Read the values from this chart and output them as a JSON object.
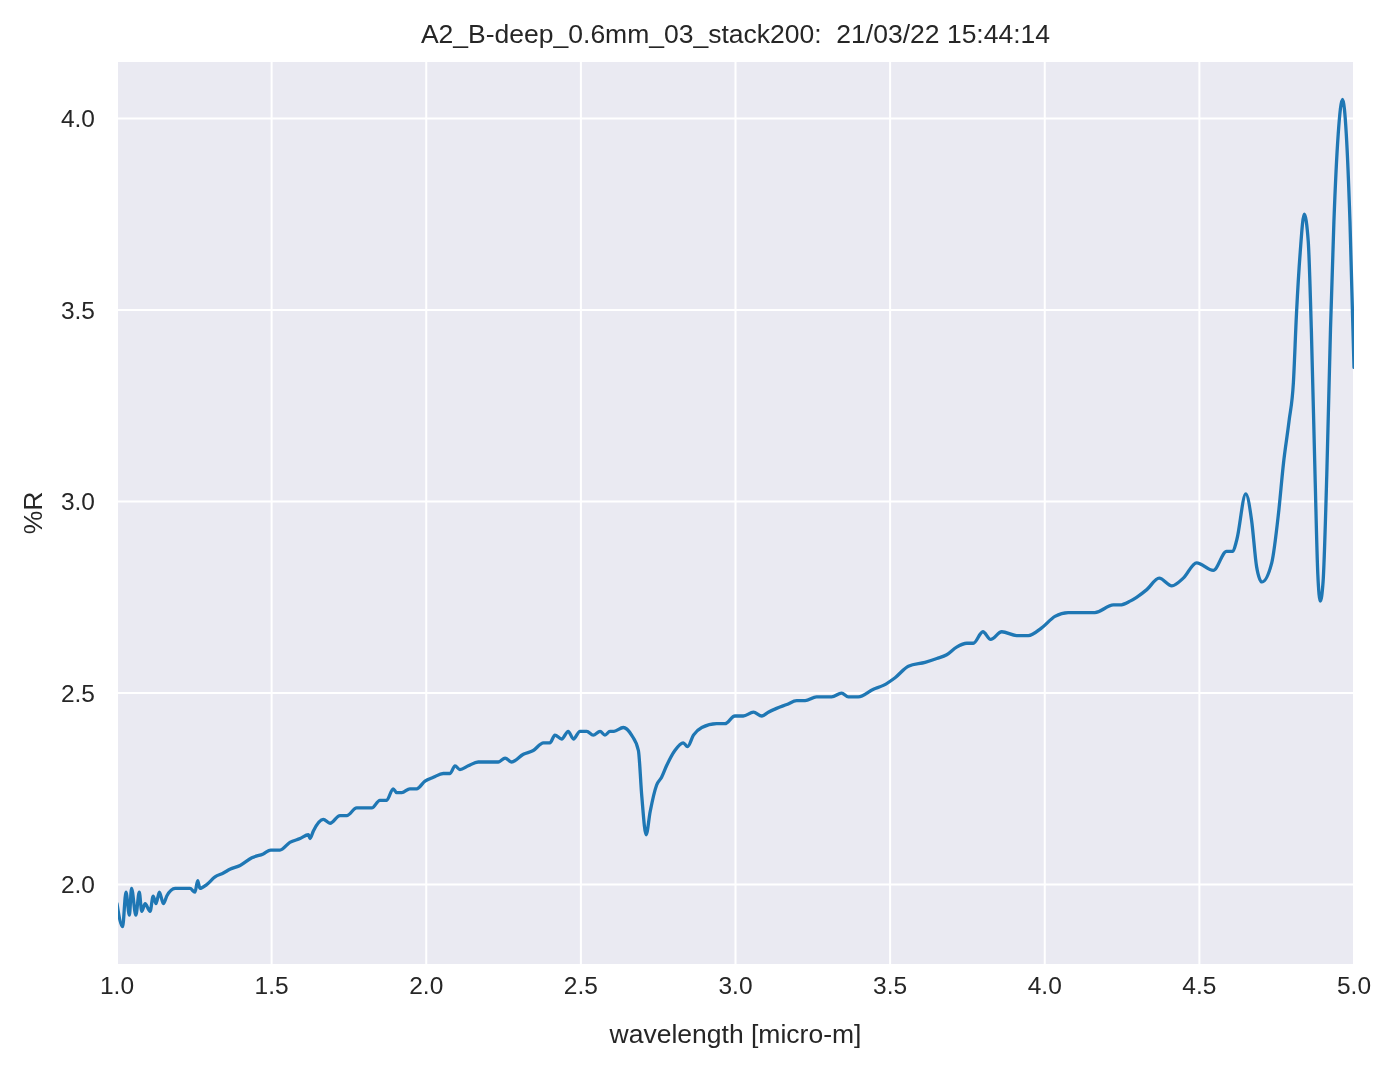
{
  "chart_data": {
    "type": "line",
    "title": "A2_B-deep_0.6mm_03_stack200:  21/03/22 15:44:14",
    "xlabel": "wavelength [micro-m]",
    "ylabel": "%R",
    "color": "#1f77b4",
    "grid": true,
    "xlim": [
      1.0,
      5.0
    ],
    "ylim": [
      1.79,
      4.15
    ],
    "xticks": [
      {
        "value": 1.0,
        "label": "1.0"
      },
      1.5,
      {
        "value": 2.0,
        "label": "2.0"
      },
      2.5,
      {
        "value": 3.0,
        "label": "3.0"
      },
      3.5,
      {
        "value": 4.0,
        "label": "4.0"
      },
      4.5,
      {
        "value": 5.0,
        "label": "5.0"
      }
    ],
    "yticks": [
      {
        "value": 2.0,
        "label": "2.0"
      },
      2.5,
      {
        "value": 3.0,
        "label": "3.0"
      },
      3.5,
      {
        "value": 4.0,
        "label": "4.0"
      }
    ],
    "x": [
      1.0,
      1.018,
      1.029,
      1.04,
      1.047,
      1.061,
      1.072,
      1.08,
      1.091,
      1.107,
      1.117,
      1.126,
      1.137,
      1.15,
      1.161,
      1.188,
      1.209,
      1.236,
      1.252,
      1.261,
      1.268,
      1.29,
      1.317,
      1.344,
      1.365,
      1.398,
      1.436,
      1.473,
      1.497,
      1.527,
      1.559,
      1.592,
      1.619,
      1.624,
      1.635,
      1.667,
      1.689,
      1.721,
      1.743,
      1.775,
      1.797,
      1.824,
      1.85,
      1.872,
      1.893,
      1.904,
      1.921,
      1.947,
      1.969,
      1.996,
      2.023,
      2.055,
      2.077,
      2.093,
      2.109,
      2.136,
      2.168,
      2.206,
      2.233,
      2.255,
      2.276,
      2.314,
      2.346,
      2.379,
      2.4,
      2.416,
      2.438,
      2.459,
      2.476,
      2.497,
      2.519,
      2.54,
      2.562,
      2.578,
      2.594,
      2.607,
      2.637,
      2.664,
      2.686,
      2.697,
      2.711,
      2.724,
      2.745,
      2.761,
      2.777,
      2.804,
      2.831,
      2.845,
      2.864,
      2.891,
      2.939,
      2.966,
      2.998,
      3.025,
      3.058,
      3.085,
      3.106,
      3.133,
      3.166,
      3.198,
      3.225,
      3.262,
      3.311,
      3.343,
      3.365,
      3.397,
      3.446,
      3.478,
      3.516,
      3.559,
      3.613,
      3.651,
      3.683,
      3.715,
      3.748,
      3.769,
      3.8,
      3.825,
      3.861,
      3.909,
      3.947,
      3.99,
      4.033,
      4.076,
      4.114,
      4.162,
      4.222,
      4.243,
      4.276,
      4.297,
      4.33,
      4.37,
      4.411,
      4.448,
      4.491,
      4.545,
      4.588,
      4.608,
      4.621,
      4.65,
      4.669,
      4.685,
      4.702,
      4.734,
      4.756,
      4.772,
      4.79,
      4.804,
      4.814,
      4.826,
      4.839,
      4.852,
      4.862,
      4.874,
      4.883,
      4.891,
      4.9,
      4.912,
      4.924,
      4.935,
      4.949,
      4.963,
      4.975,
      4.987,
      5.0
    ],
    "values": [
      1.95,
      1.89,
      1.98,
      1.92,
      1.99,
      1.92,
      1.98,
      1.93,
      1.95,
      1.93,
      1.97,
      1.95,
      1.98,
      1.95,
      1.97,
      1.99,
      1.99,
      1.99,
      1.98,
      2.01,
      1.99,
      2.0,
      2.02,
      2.03,
      2.04,
      2.05,
      2.07,
      2.08,
      2.09,
      2.09,
      2.11,
      2.12,
      2.13,
      2.12,
      2.14,
      2.17,
      2.16,
      2.18,
      2.18,
      2.2,
      2.2,
      2.2,
      2.22,
      2.22,
      2.25,
      2.24,
      2.24,
      2.25,
      2.25,
      2.27,
      2.28,
      2.29,
      2.29,
      2.31,
      2.3,
      2.31,
      2.32,
      2.32,
      2.32,
      2.33,
      2.32,
      2.34,
      2.35,
      2.37,
      2.37,
      2.39,
      2.38,
      2.4,
      2.38,
      2.4,
      2.4,
      2.39,
      2.4,
      2.39,
      2.4,
      2.4,
      2.41,
      2.39,
      2.35,
      2.23,
      2.13,
      2.19,
      2.26,
      2.28,
      2.31,
      2.35,
      2.37,
      2.36,
      2.39,
      2.41,
      2.42,
      2.42,
      2.44,
      2.44,
      2.45,
      2.44,
      2.45,
      2.46,
      2.47,
      2.48,
      2.48,
      2.49,
      2.49,
      2.5,
      2.49,
      2.49,
      2.51,
      2.52,
      2.54,
      2.57,
      2.58,
      2.59,
      2.6,
      2.62,
      2.63,
      2.63,
      2.66,
      2.64,
      2.66,
      2.65,
      2.65,
      2.67,
      2.7,
      2.71,
      2.71,
      2.71,
      2.73,
      2.73,
      2.74,
      2.75,
      2.77,
      2.8,
      2.78,
      2.8,
      2.84,
      2.82,
      2.87,
      2.87,
      2.9,
      3.02,
      2.95,
      2.83,
      2.79,
      2.84,
      2.97,
      3.1,
      3.21,
      3.31,
      3.49,
      3.65,
      3.75,
      3.68,
      3.45,
      3.07,
      2.81,
      2.74,
      2.79,
      3.07,
      3.45,
      3.73,
      3.96,
      4.05,
      3.96,
      3.73,
      3.35
    ]
  }
}
